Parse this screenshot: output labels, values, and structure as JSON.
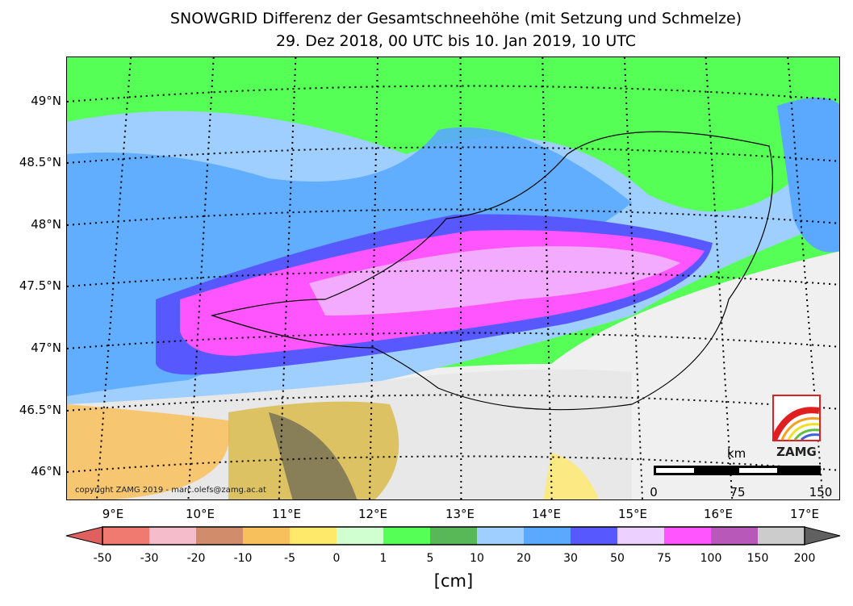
{
  "title": {
    "line1": "SNOWGRID Differenz der Gesamtschneehöhe (mit Setzung und Schmelze)",
    "line2": "29. Dez 2018, 00 UTC bis 10. Jan 2019, 10 UTC"
  },
  "lat_labels": [
    "49°N",
    "48.5°N",
    "48°N",
    "47.5°N",
    "47°N",
    "46.5°N",
    "46°N"
  ],
  "lon_labels": [
    "9°E",
    "10°E",
    "11°E",
    "12°E",
    "13°E",
    "14°E",
    "15°E",
    "16°E",
    "17°E"
  ],
  "copyright": "copyright ZAMG 2019 - marc.olefs@zamg.ac.at",
  "logo_text": "ZAMG",
  "scalebar": {
    "unit": "km",
    "labels": [
      "0",
      "75",
      "150"
    ]
  },
  "colorbar": {
    "labels": [
      "-50",
      "-30",
      "-20",
      "-10",
      "-5",
      "0",
      "1",
      "5",
      "10",
      "20",
      "30",
      "50",
      "75",
      "100",
      "150",
      "200"
    ],
    "under_color": "#e06060",
    "over_color": "#606060",
    "colors": [
      "#f07a70",
      "#f5bccb",
      "#d18c6c",
      "#f8c05c",
      "#ffe96a",
      "#d0ffd0",
      "#55ff55",
      "#58b858",
      "#9ecfff",
      "#5aa8ff",
      "#5858ff",
      "#ecd0ff",
      "#ff55ff",
      "#b858b8",
      "#cccccc"
    ],
    "unit": "[cm]"
  }
}
